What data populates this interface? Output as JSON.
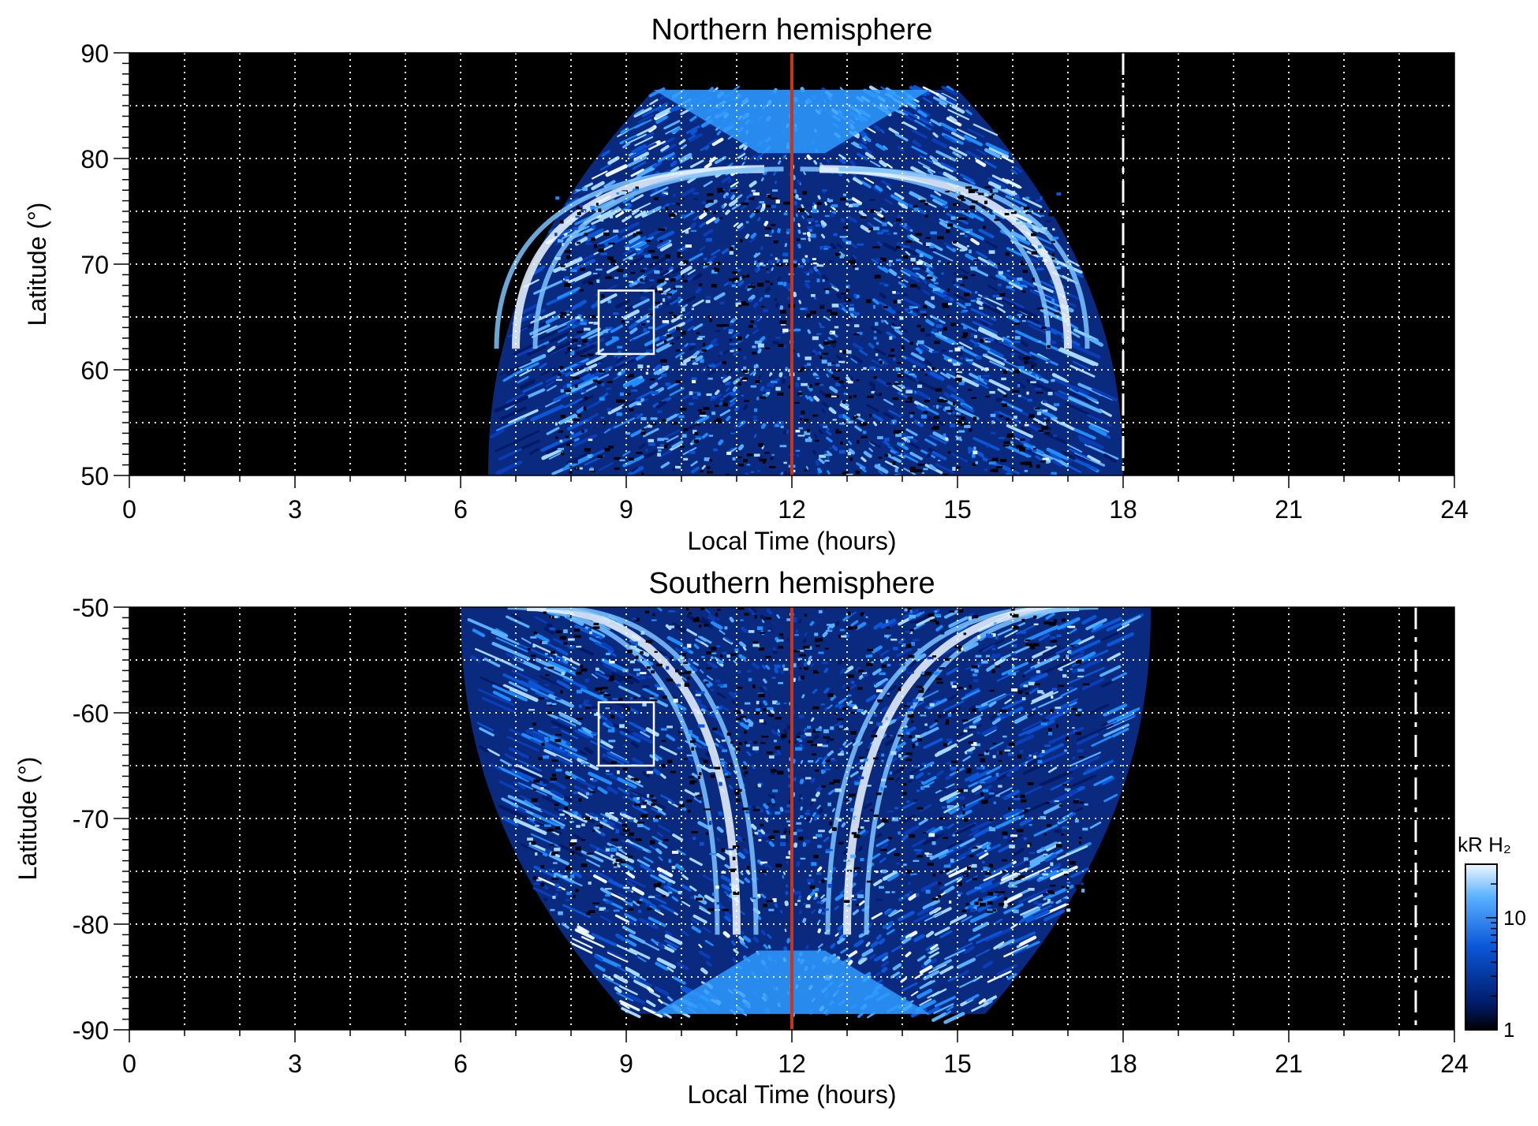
{
  "colors": {
    "background": "#000000",
    "gradient_dark": "#001a66",
    "gradient_mid": "#1f8cff",
    "gradient_light": "#e8f4ff",
    "noon_line": "#c8361a",
    "grid": "#ffffff"
  },
  "chart_data": [
    {
      "type": "heatmap",
      "title": "Northern hemisphere",
      "xlabel": "Local Time (hours)",
      "ylabel": "Latitude (°)",
      "xlim": [
        0,
        24
      ],
      "ylim": [
        50,
        90
      ],
      "xticks": [
        0,
        3,
        6,
        9,
        12,
        15,
        18,
        21,
        24
      ],
      "yticks": [
        50,
        60,
        70,
        80,
        90
      ],
      "y_grid_lines": [
        55,
        60,
        65,
        70,
        75,
        80,
        85
      ],
      "x_grid_lines": [
        1,
        2,
        3,
        4,
        5,
        6,
        7,
        8,
        9,
        10,
        11,
        12,
        13,
        14,
        15,
        16,
        17,
        18,
        19,
        20,
        21,
        22,
        23
      ],
      "grid": true,
      "coverage_lt": [
        6.5,
        18.0
      ],
      "coverage_top_lat": 86.5,
      "noon_line_lt": 12,
      "dashed_line_lt": 18.0,
      "box": {
        "lt": [
          8.5,
          9.5
        ],
        "lat": [
          61.5,
          67.5
        ]
      },
      "arcs": [
        {
          "lt_from": 7.0,
          "lt_to": 11.5,
          "lat_from": 62,
          "lat_to": 79
        },
        {
          "lt_from": 17.0,
          "lt_to": 12.5,
          "lat_from": 62,
          "lat_to": 79
        }
      ]
    },
    {
      "type": "heatmap",
      "title": "Southern hemisphere",
      "xlabel": "Local Time (hours)",
      "ylabel": "Latitude (°)",
      "xlim": [
        0,
        24
      ],
      "ylim": [
        -90,
        -50
      ],
      "xticks": [
        0,
        3,
        6,
        9,
        12,
        15,
        18,
        21,
        24
      ],
      "yticks": [
        -90,
        -80,
        -70,
        -60,
        -50
      ],
      "y_grid_lines": [
        -55,
        -60,
        -65,
        -70,
        -75,
        -80,
        -85
      ],
      "x_grid_lines": [
        1,
        2,
        3,
        4,
        5,
        6,
        7,
        8,
        9,
        10,
        11,
        12,
        13,
        14,
        15,
        16,
        17,
        18,
        19,
        20,
        21,
        22,
        23
      ],
      "grid": true,
      "coverage_lt": [
        6.0,
        18.5
      ],
      "coverage_bottom_lat": -88.5,
      "noon_line_lt": 12,
      "dashed_line_lt": 23.3,
      "box": {
        "lt": [
          8.5,
          9.5
        ],
        "lat": [
          -65,
          -59
        ]
      },
      "arcs": [
        {
          "lt_from": 7.2,
          "lt_to": 11.0,
          "lat_from": -50,
          "lat_to": -81
        },
        {
          "lt_from": 17.2,
          "lt_to": 13.0,
          "lat_from": -50,
          "lat_to": -81
        }
      ]
    }
  ],
  "colorbar": {
    "label": "kR H₂",
    "ticks": [
      1,
      10
    ],
    "scale": "log",
    "range": [
      1,
      30
    ]
  }
}
